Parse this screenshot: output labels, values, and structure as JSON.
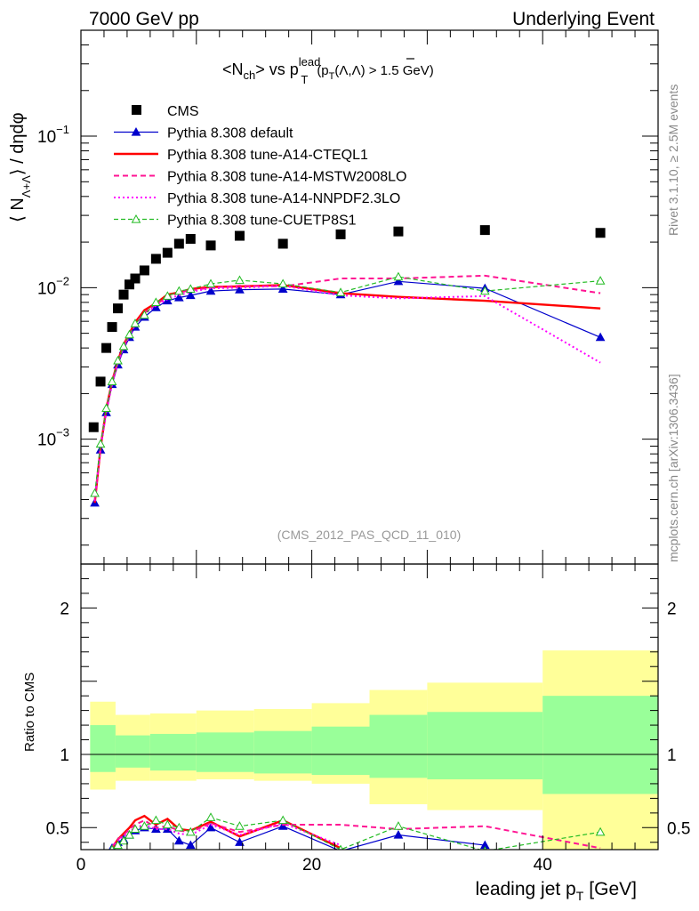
{
  "header": {
    "left": "7000 GeV pp",
    "right": "Underlying Event"
  },
  "title": {
    "main": "<N",
    "sub1": "ch",
    "mid": "> vs p",
    "sup": "lead",
    "sub2": "T",
    "cut": "(p",
    "cut_sub": "T",
    "cut_rest": "(Λ,Λ) > 1.5 GeV)"
  },
  "side_labels": {
    "rivet": "Rivet 3.1.10, ≥ 2.5M events",
    "mcplots": "mcplots.cern.ch [arXiv:1306.3436]"
  },
  "analysis_id": "(CMS_2012_PAS_QCD_11_010)",
  "y_label_top": "⟨ N",
  "y_label_top_sub": "Λ+Λ",
  "y_label_top_rest": "⟩ / dηdφ",
  "y_label_bottom": "Ratio to CMS",
  "x_label": "leading jet p",
  "x_label_sub": "T",
  "x_label_unit": "[GeV]",
  "colors": {
    "cms": "#000000",
    "default": "#0000cc",
    "cteql1": "#ff0000",
    "mstw": "#ff1493",
    "nnpdf": "#ff00ff",
    "cuetp8s1": "#22bb22",
    "band_outer": "#ffff99",
    "band_inner": "#99ff99"
  },
  "chart_data": [
    {
      "type": "scatter",
      "panel": "main",
      "yscale": "log",
      "xlim": [
        0,
        50
      ],
      "ylim": [
        0.00015,
        0.5
      ],
      "yticks": [
        {
          "v": 0.001,
          "base": "10",
          "exp": "−3"
        },
        {
          "v": 0.01,
          "base": "10",
          "exp": "−2"
        },
        {
          "v": 0.1,
          "base": "10",
          "exp": "−1"
        }
      ],
      "legend_position": "top-left",
      "series": [
        {
          "name": "CMS",
          "key": "cms",
          "style": "square",
          "x": [
            1.1,
            1.7,
            2.2,
            2.7,
            3.2,
            3.7,
            4.2,
            4.7,
            5.5,
            6.5,
            7.5,
            8.5,
            9.5,
            11.25,
            13.75,
            17.5,
            22.5,
            27.5,
            35,
            45
          ],
          "y": [
            0.0012,
            0.0024,
            0.004,
            0.0055,
            0.0073,
            0.009,
            0.0105,
            0.0115,
            0.013,
            0.0155,
            0.017,
            0.0195,
            0.021,
            0.019,
            0.022,
            0.0195,
            0.0225,
            0.0235,
            0.024,
            0.023
          ]
        },
        {
          "name": "Pythia 8.308 default",
          "key": "default",
          "style": "line-triangle",
          "x": [
            1.2,
            1.7,
            2.2,
            2.7,
            3.2,
            3.7,
            4.2,
            4.7,
            5.5,
            6.5,
            7.5,
            8.5,
            9.5,
            11.25,
            13.75,
            17.5,
            22.5,
            27.5,
            35,
            45
          ],
          "y": [
            0.00038,
            0.00085,
            0.0015,
            0.0023,
            0.0031,
            0.0039,
            0.0047,
            0.0055,
            0.0064,
            0.0074,
            0.0082,
            0.0086,
            0.0089,
            0.0095,
            0.0097,
            0.0098,
            0.009,
            0.011,
            0.0099,
            0.0047
          ]
        },
        {
          "name": "Pythia 8.308 tune-A14-CTEQL1",
          "key": "cteql1",
          "style": "line-thick",
          "x": [
            1.2,
            1.7,
            2.2,
            2.7,
            3.2,
            3.7,
            4.2,
            4.7,
            5.5,
            6.5,
            7.5,
            8.5,
            9.5,
            11.25,
            13.75,
            17.5,
            22.5,
            27.5,
            35,
            45
          ],
          "y": [
            0.00038,
            0.00088,
            0.0016,
            0.0024,
            0.0033,
            0.0042,
            0.005,
            0.0059,
            0.0071,
            0.0079,
            0.009,
            0.0093,
            0.0098,
            0.0101,
            0.0102,
            0.0104,
            0.0092,
            0.0087,
            0.0082,
            0.0073
          ]
        },
        {
          "name": "Pythia 8.308 tune-A14-MSTW2008LO",
          "key": "mstw",
          "style": "dashed",
          "x": [
            1.2,
            1.7,
            2.2,
            2.7,
            3.2,
            3.7,
            4.2,
            4.7,
            5.5,
            6.5,
            7.5,
            8.5,
            9.5,
            11.25,
            13.75,
            17.5,
            22.5,
            27.5,
            35,
            45
          ],
          "y": [
            0.0004,
            0.0009,
            0.0016,
            0.0024,
            0.0032,
            0.0041,
            0.0049,
            0.0058,
            0.0068,
            0.0078,
            0.0086,
            0.0093,
            0.0096,
            0.01,
            0.0103,
            0.0102,
            0.0115,
            0.0115,
            0.012,
            0.0092
          ]
        },
        {
          "name": "Pythia 8.308 tune-A14-NNPDF2.3LO",
          "key": "nnpdf",
          "style": "dotted",
          "x": [
            1.2,
            1.7,
            2.2,
            2.7,
            3.2,
            3.7,
            4.2,
            4.7,
            5.5,
            6.5,
            7.5,
            8.5,
            9.5,
            11.25,
            13.75,
            17.5,
            22.5,
            27.5,
            35,
            45
          ],
          "y": [
            0.00039,
            0.00087,
            0.0015,
            0.0023,
            0.0032,
            0.004,
            0.0048,
            0.0057,
            0.0067,
            0.0076,
            0.0084,
            0.0089,
            0.0094,
            0.0099,
            0.01,
            0.0103,
            0.0089,
            0.0085,
            0.0088,
            0.0032
          ]
        },
        {
          "name": "Pythia 8.308 tune-CUETP8S1",
          "key": "cuetp8s1",
          "style": "dashed-triangle-open",
          "x": [
            1.2,
            1.7,
            2.2,
            2.7,
            3.2,
            3.7,
            4.2,
            4.7,
            5.5,
            6.5,
            7.5,
            8.5,
            9.5,
            11.25,
            13.75,
            17.5,
            22.5,
            27.5,
            35,
            45
          ],
          "y": [
            0.00044,
            0.00093,
            0.0016,
            0.0024,
            0.0033,
            0.0041,
            0.0049,
            0.0058,
            0.0066,
            0.008,
            0.0088,
            0.0095,
            0.0098,
            0.0106,
            0.0112,
            0.0106,
            0.0093,
            0.0118,
            0.0095,
            0.0111
          ]
        }
      ]
    },
    {
      "type": "line",
      "panel": "ratio",
      "xlim": [
        0,
        50
      ],
      "ylim": [
        0.35,
        2.3
      ],
      "yticks": [
        0.5,
        1,
        2
      ],
      "xticks": [
        0,
        20,
        40
      ],
      "bands": {
        "x_edges": [
          0.8,
          3,
          6,
          10,
          15,
          20,
          25,
          30,
          40,
          50
        ],
        "outer_lo": [
          0.76,
          0.82,
          0.82,
          0.83,
          0.82,
          0.8,
          0.66,
          0.62,
          0.15
        ],
        "outer_hi": [
          1.36,
          1.27,
          1.28,
          1.3,
          1.31,
          1.35,
          1.44,
          1.49,
          1.71
        ],
        "inner_lo": [
          0.88,
          0.91,
          0.89,
          0.88,
          0.87,
          0.86,
          0.84,
          0.83,
          0.73
        ],
        "inner_hi": [
          1.2,
          1.13,
          1.14,
          1.15,
          1.16,
          1.19,
          1.27,
          1.29,
          1.4
        ]
      },
      "series": [
        {
          "key": "default",
          "x": [
            2.7,
            3.2,
            3.7,
            4.2,
            4.7,
            5.5,
            6.5,
            7.5,
            8.5,
            9.5,
            11.25,
            13.75,
            17.5,
            22.5,
            27.5,
            35
          ],
          "y": [
            0.36,
            0.4,
            0.42,
            0.45,
            0.48,
            0.5,
            0.49,
            0.49,
            0.41,
            0.38,
            0.5,
            0.4,
            0.51,
            0.34,
            0.45,
            0.38
          ]
        },
        {
          "key": "cteql1",
          "x": [
            2.7,
            3.2,
            3.7,
            4.2,
            4.7,
            5.5,
            6.5,
            7.5,
            8.5,
            9.5,
            11.25,
            13.75,
            17.5,
            22.5
          ],
          "y": [
            0.36,
            0.42,
            0.46,
            0.5,
            0.55,
            0.58,
            0.52,
            0.56,
            0.49,
            0.48,
            0.54,
            0.44,
            0.55,
            0.36
          ]
        },
        {
          "key": "mstw",
          "x": [
            2.7,
            3.2,
            3.7,
            4.2,
            4.7,
            5.5,
            6.5,
            7.5,
            8.5,
            9.5,
            11.25,
            13.75,
            17.5,
            22.5,
            27.5,
            35,
            45
          ],
          "y": [
            0.37,
            0.42,
            0.45,
            0.49,
            0.52,
            0.55,
            0.5,
            0.51,
            0.48,
            0.47,
            0.53,
            0.47,
            0.52,
            0.52,
            0.49,
            0.51,
            0.36
          ]
        },
        {
          "key": "nnpdf",
          "x": [
            2.7,
            3.2,
            3.7,
            4.2,
            4.7,
            5.5,
            6.5,
            7.5,
            8.5,
            9.5,
            11.25,
            13.75,
            17.5,
            22.5
          ],
          "y": [
            0.36,
            0.41,
            0.44,
            0.47,
            0.5,
            0.52,
            0.49,
            0.49,
            0.46,
            0.45,
            0.52,
            0.45,
            0.53,
            0.38
          ]
        },
        {
          "key": "cuetp8s1",
          "x": [
            2.7,
            3.2,
            3.7,
            4.2,
            4.7,
            5.5,
            6.5,
            7.5,
            8.5,
            9.5,
            11.25,
            13.75,
            17.5,
            22.5,
            27.5,
            35,
            45
          ],
          "y": [
            0.35,
            0.38,
            0.41,
            0.45,
            0.49,
            0.51,
            0.55,
            0.52,
            0.5,
            0.47,
            0.57,
            0.51,
            0.55,
            0.35,
            0.51,
            0.34,
            0.47
          ]
        }
      ]
    }
  ]
}
